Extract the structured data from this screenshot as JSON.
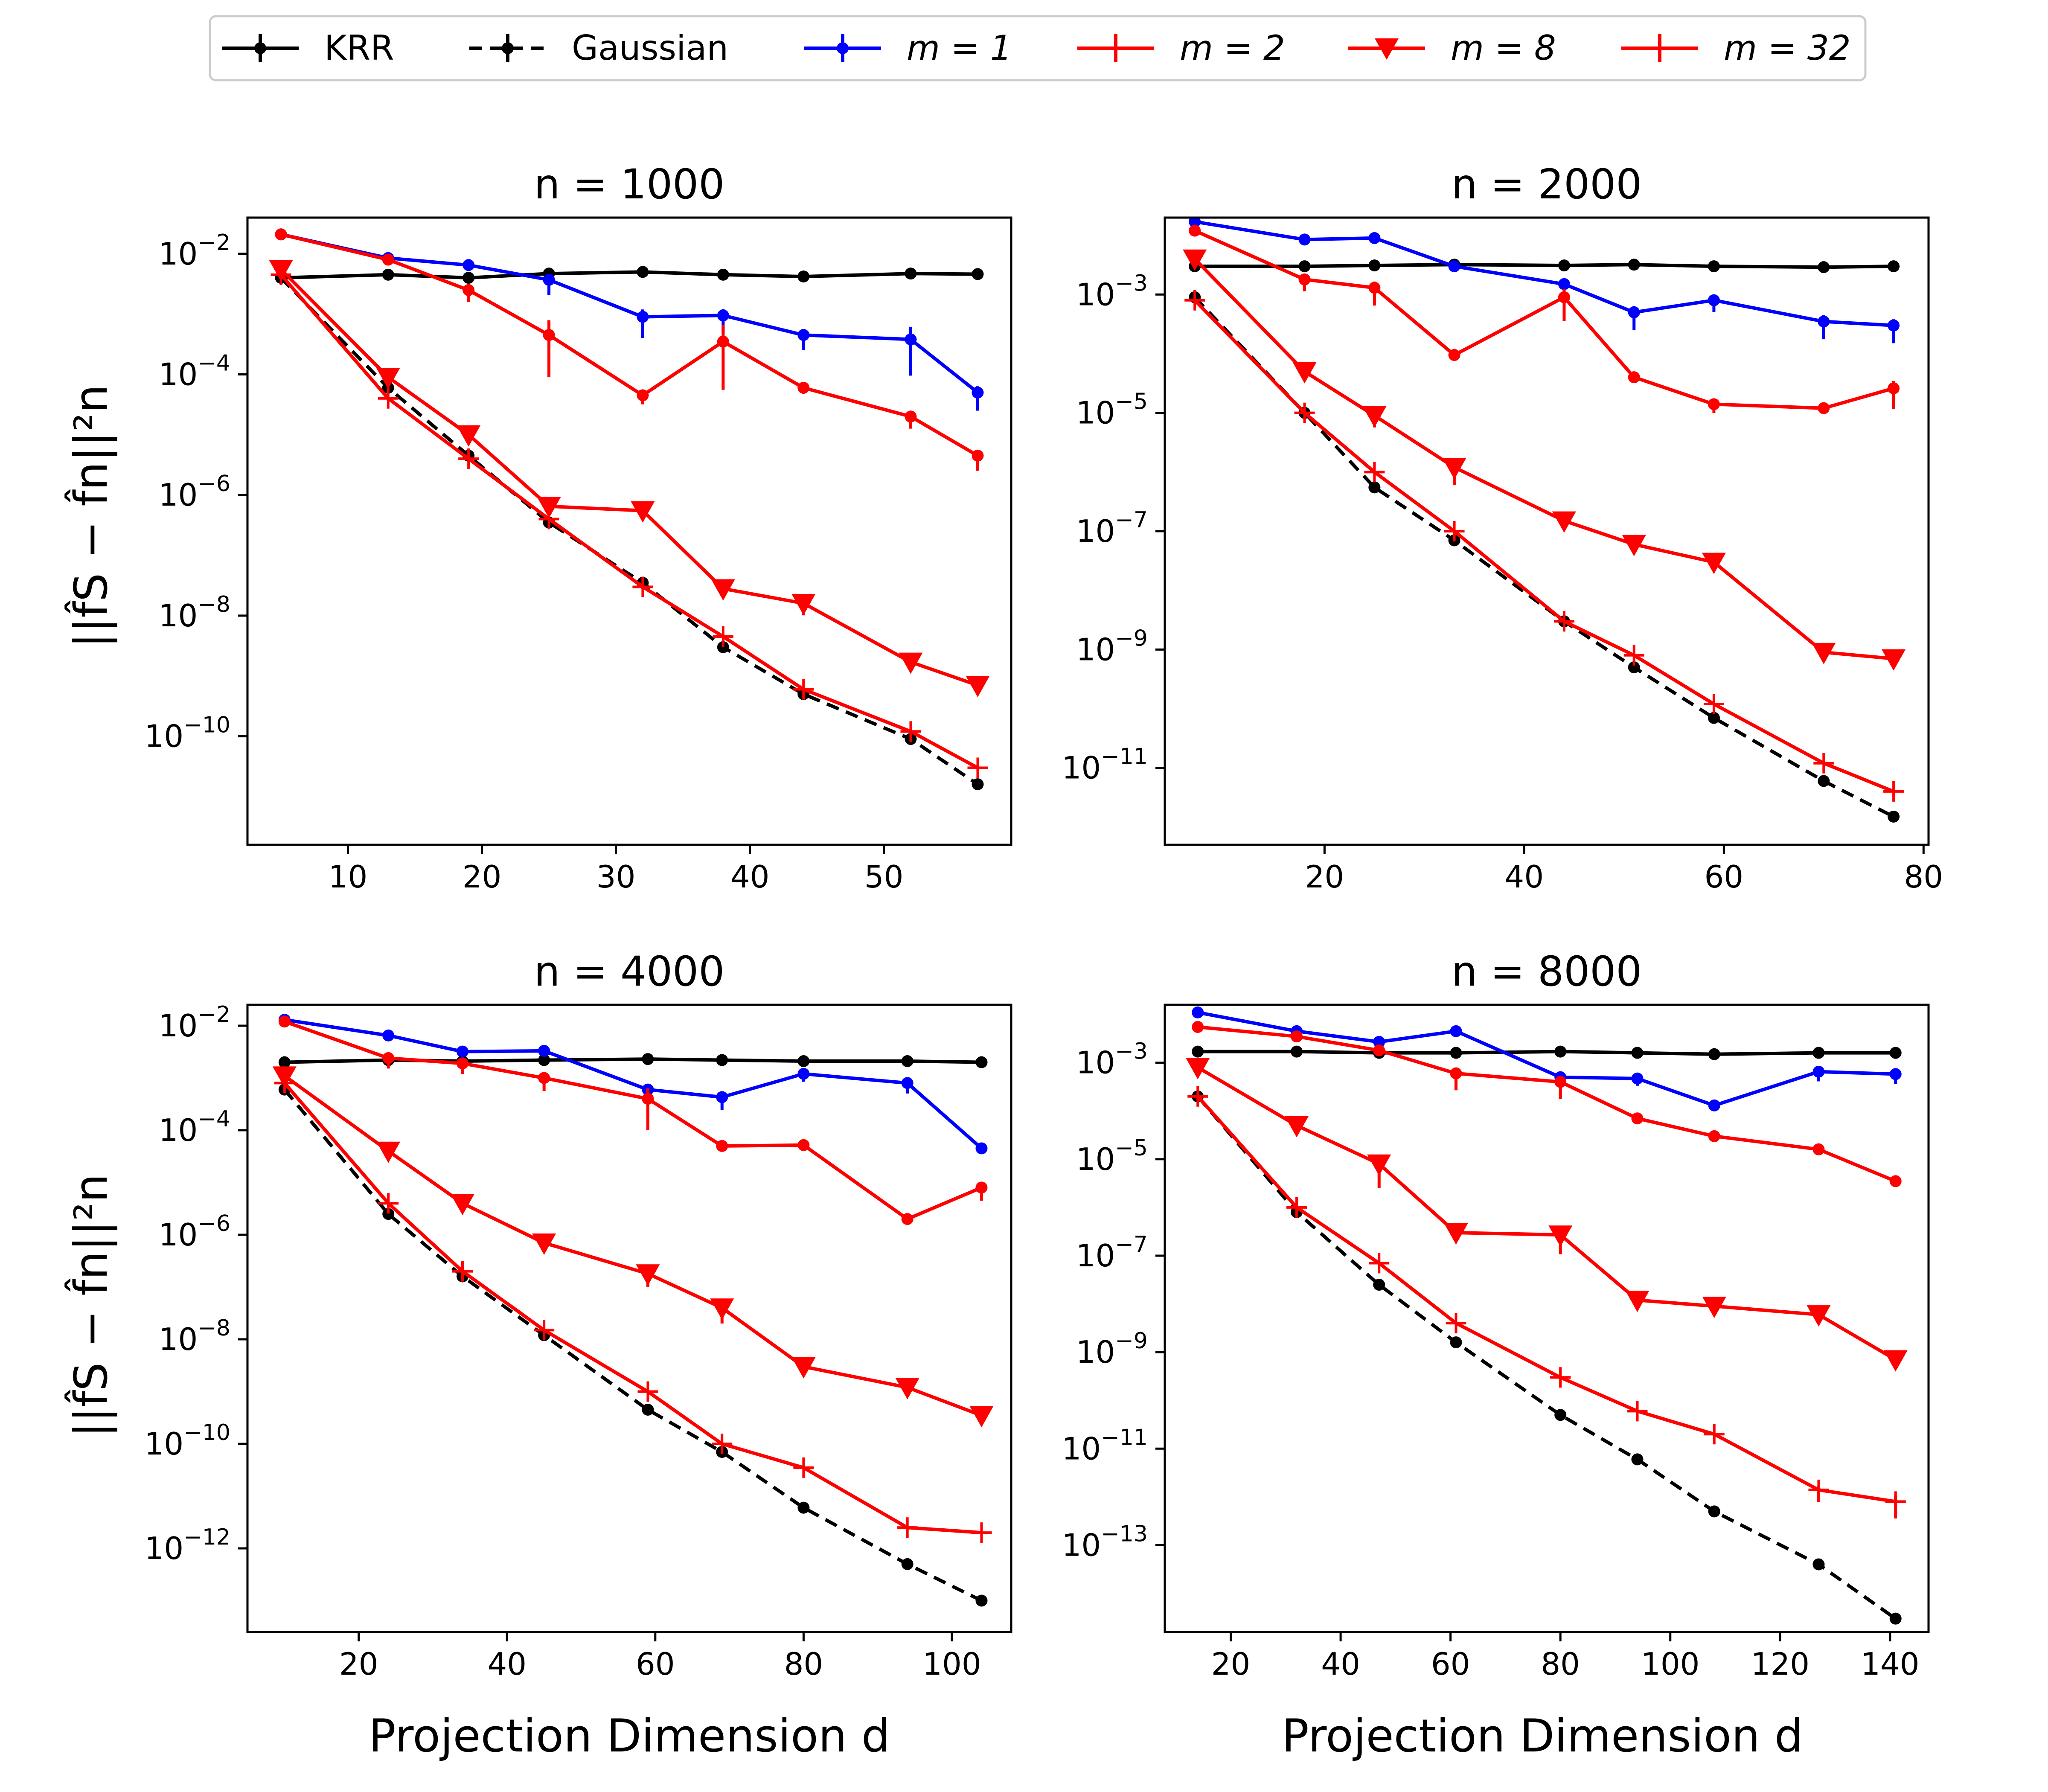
{
  "colors": {
    "krr": "#000000",
    "gaussian": "#000000",
    "m1": "#0000ff",
    "m2": "#ff0000",
    "m8": "#ff0000",
    "m32": "#ff0000"
  },
  "legend": {
    "krr": "KRR",
    "gaussian": "Gaussian",
    "m1": "m = 1",
    "m2": "m = 2",
    "m8": "m = 8",
    "m32": "m = 32"
  },
  "axes": {
    "xlabel": "Projection Dimension d",
    "ylabel": "||f̂S − f̂n||²n"
  },
  "chart_data": [
    {
      "type": "line",
      "title": "n = 1000",
      "xlabel": "Projection Dimension d",
      "ylabel": "||f̂S − f̂n||²n",
      "yscale": "log",
      "xlim": [
        2.5,
        59.5
      ],
      "ylim_exp": [
        -11.8,
        -1.4
      ],
      "xticks": [
        10,
        20,
        30,
        40,
        50
      ],
      "yticks": [
        -10,
        -8,
        -6,
        -4,
        -2
      ],
      "series": [
        {
          "key": "krr",
          "name": "KRR",
          "marker": "dot",
          "dash": false,
          "x": [
            5,
            13,
            19,
            25,
            32,
            38,
            44,
            52,
            57
          ],
          "y": [
            0.004,
            0.0045,
            0.004,
            0.0047,
            0.005,
            0.0045,
            0.0042,
            0.0047,
            0.0046
          ],
          "err": [
            0,
            0,
            0,
            0,
            0,
            0,
            0,
            0,
            0
          ]
        },
        {
          "key": "gaussian",
          "name": "Gaussian",
          "marker": "dot",
          "dash": true,
          "x": [
            5,
            13,
            19,
            25,
            32,
            38,
            44,
            52,
            57
          ],
          "y": [
            0.004,
            6e-05,
            4.5e-06,
            3.5e-07,
            3.5e-08,
            3e-09,
            5e-10,
            9e-11,
            1.6e-11
          ],
          "err": [
            0,
            0,
            0,
            0,
            0,
            0,
            0,
            0,
            0
          ]
        },
        {
          "key": "m1",
          "name": "m = 1",
          "marker": "dot",
          "dash": false,
          "x": [
            5,
            13,
            19,
            25,
            32,
            38,
            44,
            52,
            57
          ],
          "y": [
            0.021,
            0.0085,
            0.0065,
            0.0037,
            0.0009,
            0.00095,
            0.00045,
            0.00038,
            5e-05
          ],
          "err": [
            0,
            0,
            0,
            0.25,
            0.35,
            0.3,
            0.25,
            0.6,
            0.3
          ]
        },
        {
          "key": "m2",
          "name": "m = 2",
          "marker": "dot",
          "dash": false,
          "x": [
            5,
            13,
            19,
            25,
            32,
            38,
            44,
            52,
            57
          ],
          "y": [
            0.021,
            0.008,
            0.0025,
            0.00045,
            4.5e-05,
            0.00035,
            6e-05,
            2e-05,
            4.5e-06
          ],
          "err": [
            0,
            0,
            0.2,
            0.7,
            0.15,
            0.8,
            0.1,
            0.2,
            0.25
          ]
        },
        {
          "key": "m8",
          "name": "m = 8",
          "marker": "tri",
          "dash": false,
          "x": [
            5,
            13,
            19,
            25,
            32,
            38,
            44,
            52,
            57
          ],
          "y": [
            0.0055,
            9e-05,
            1e-05,
            6.5e-07,
            5.5e-07,
            2.8e-08,
            1.6e-08,
            1.7e-09,
            7e-10
          ],
          "err": [
            0,
            0,
            0,
            0,
            0,
            0,
            0.2,
            0,
            0.1
          ]
        },
        {
          "key": "m32",
          "name": "m = 32",
          "marker": "plus",
          "dash": false,
          "x": [
            5,
            13,
            19,
            25,
            32,
            38,
            44,
            52,
            57
          ],
          "y": [
            0.0045,
            4e-05,
            4e-06,
            4e-07,
            3e-08,
            4.5e-09,
            6e-10,
            1.2e-10,
            3e-11
          ],
          "err": [
            0,
            0,
            0,
            0,
            0,
            0,
            0,
            0,
            0
          ]
        }
      ]
    },
    {
      "type": "line",
      "title": "n = 2000",
      "xlabel": "Projection Dimension d",
      "ylabel": "||f̂S − f̂n||²n",
      "yscale": "log",
      "xlim": [
        4,
        80.5
      ],
      "ylim_exp": [
        -12.3,
        -1.7
      ],
      "xticks": [
        20,
        40,
        60,
        80
      ],
      "yticks": [
        -11,
        -9,
        -7,
        -5,
        -3
      ],
      "series": [
        {
          "key": "krr",
          "name": "KRR",
          "marker": "dot",
          "dash": false,
          "x": [
            7,
            18,
            25,
            33,
            44,
            51,
            59,
            70,
            77
          ],
          "y": [
            0.003,
            0.003,
            0.0031,
            0.0032,
            0.0031,
            0.0032,
            0.003,
            0.0029,
            0.003
          ],
          "err": [
            0,
            0,
            0,
            0,
            0,
            0,
            0,
            0,
            0
          ]
        },
        {
          "key": "gaussian",
          "name": "Gaussian",
          "marker": "dot",
          "dash": true,
          "x": [
            7,
            18,
            25,
            33,
            44,
            51,
            59,
            70,
            77
          ],
          "y": [
            0.0009,
            1e-05,
            5.5e-07,
            7e-08,
            3e-09,
            5e-10,
            7e-11,
            6e-12,
            1.5e-12
          ],
          "err": [
            0,
            0,
            0,
            0,
            0,
            0,
            0,
            0,
            0
          ]
        },
        {
          "key": "m1",
          "name": "m = 1",
          "marker": "dot",
          "dash": false,
          "x": [
            7,
            18,
            25,
            33,
            44,
            51,
            59,
            70,
            77
          ],
          "y": [
            0.017,
            0.0085,
            0.009,
            0.003,
            0.0015,
            0.0005,
            0.0008,
            0.00035,
            0.0003
          ],
          "err": [
            0,
            0,
            0,
            0.1,
            0.12,
            0.3,
            0.2,
            0.3,
            0.3
          ]
        },
        {
          "key": "m2",
          "name": "m = 2",
          "marker": "dot",
          "dash": false,
          "x": [
            7,
            18,
            25,
            33,
            44,
            51,
            59,
            70,
            77
          ],
          "y": [
            0.012,
            0.0018,
            0.0013,
            9.5e-05,
            0.0009,
            4e-05,
            1.4e-05,
            1.2e-05,
            2.6e-05
          ],
          "err": [
            0,
            0.2,
            0.3,
            0,
            0.4,
            0,
            0.15,
            0.1,
            0.35
          ]
        },
        {
          "key": "m8",
          "name": "m = 8",
          "marker": "tri",
          "dash": false,
          "x": [
            7,
            18,
            25,
            33,
            44,
            51,
            59,
            70,
            77
          ],
          "y": [
            0.004,
            5e-05,
            9e-06,
            1.2e-06,
            1.5e-07,
            6e-08,
            3e-08,
            9e-10,
            7e-10
          ],
          "err": [
            0,
            0,
            0.2,
            0.3,
            0,
            0,
            0.15,
            0,
            0.15
          ]
        },
        {
          "key": "m32",
          "name": "m = 32",
          "marker": "plus",
          "dash": false,
          "x": [
            7,
            18,
            25,
            33,
            44,
            51,
            59,
            70,
            77
          ],
          "y": [
            0.0008,
            1e-05,
            1e-06,
            1e-07,
            3e-09,
            8e-10,
            1.2e-10,
            1.2e-11,
            4e-12
          ],
          "err": [
            0,
            0,
            0,
            0,
            0,
            0,
            0,
            0,
            0
          ]
        }
      ]
    },
    {
      "type": "line",
      "title": "n = 4000",
      "xlabel": "Projection Dimension d",
      "ylabel": "||f̂S − f̂n||²n",
      "yscale": "log",
      "xlim": [
        5,
        108
      ],
      "ylim_exp": [
        -13.6,
        -1.6
      ],
      "xticks": [
        20,
        40,
        60,
        80,
        100
      ],
      "yticks": [
        -12,
        -10,
        -8,
        -6,
        -4,
        -2
      ],
      "series": [
        {
          "key": "krr",
          "name": "KRR",
          "marker": "dot",
          "dash": false,
          "x": [
            10,
            24,
            34,
            45,
            59,
            69,
            80,
            94,
            104
          ],
          "y": [
            0.002,
            0.0022,
            0.0021,
            0.0022,
            0.0023,
            0.0022,
            0.0021,
            0.0021,
            0.002
          ],
          "err": [
            0,
            0,
            0,
            0,
            0,
            0,
            0,
            0,
            0
          ]
        },
        {
          "key": "gaussian",
          "name": "Gaussian",
          "marker": "dot",
          "dash": true,
          "x": [
            10,
            24,
            34,
            45,
            59,
            69,
            80,
            94,
            104
          ],
          "y": [
            0.0006,
            2.5e-06,
            1.6e-07,
            1.2e-08,
            4.5e-10,
            7e-11,
            6e-12,
            5e-13,
            1e-13
          ],
          "err": [
            0,
            0,
            0,
            0,
            0,
            0,
            0,
            0,
            0
          ]
        },
        {
          "key": "m1",
          "name": "m = 1",
          "marker": "dot",
          "dash": false,
          "x": [
            10,
            24,
            34,
            45,
            59,
            69,
            80,
            94,
            104
          ],
          "y": [
            0.013,
            0.0065,
            0.0032,
            0.0033,
            0.0006,
            0.00043,
            0.0012,
            0.0008,
            4.5e-05
          ],
          "err": [
            0,
            0,
            0,
            0,
            0.15,
            0.25,
            0.15,
            0.2,
            0
          ]
        },
        {
          "key": "m2",
          "name": "m = 2",
          "marker": "dot",
          "dash": false,
          "x": [
            10,
            24,
            34,
            45,
            59,
            69,
            80,
            94,
            104
          ],
          "y": [
            0.012,
            0.0024,
            0.0019,
            0.001,
            0.0004,
            5e-05,
            5.2e-05,
            2e-06,
            8e-06
          ],
          "err": [
            0,
            0.2,
            0.2,
            0.25,
            0.6,
            0,
            0,
            0,
            0.25
          ]
        },
        {
          "key": "m8",
          "name": "m = 8",
          "marker": "tri",
          "dash": false,
          "x": [
            10,
            24,
            34,
            45,
            59,
            69,
            80,
            94,
            104
          ],
          "y": [
            0.0011,
            4e-05,
            4e-06,
            7e-07,
            1.8e-07,
            4e-08,
            3e-09,
            1.2e-09,
            3.5e-10
          ],
          "err": [
            0,
            0,
            0,
            0.15,
            0.25,
            0.3,
            0,
            0,
            0
          ]
        },
        {
          "key": "m32",
          "name": "m = 32",
          "marker": "plus",
          "dash": false,
          "x": [
            10,
            24,
            34,
            45,
            59,
            69,
            80,
            94,
            104
          ],
          "y": [
            0.0008,
            4e-06,
            2e-07,
            1.5e-08,
            1e-09,
            1e-10,
            3.5e-11,
            2.5e-12,
            2e-12
          ],
          "err": [
            0,
            0,
            0,
            0,
            0,
            0,
            0,
            0,
            0
          ]
        }
      ]
    },
    {
      "type": "line",
      "title": "n = 8000",
      "xlabel": "Projection Dimension d",
      "ylabel": "||f̂S − f̂n||²n",
      "yscale": "log",
      "xlim": [
        8,
        147
      ],
      "ylim_exp": [
        -14.8,
        -1.8
      ],
      "xticks": [
        20,
        40,
        60,
        80,
        100,
        120,
        140
      ],
      "yticks": [
        -13,
        -11,
        -9,
        -7,
        -5,
        -3
      ],
      "series": [
        {
          "key": "krr",
          "name": "KRR",
          "marker": "dot",
          "dash": false,
          "x": [
            14,
            32,
            47,
            61,
            80,
            94,
            108,
            127,
            141
          ],
          "y": [
            0.0017,
            0.0017,
            0.0016,
            0.0016,
            0.0017,
            0.0016,
            0.0015,
            0.0016,
            0.0016
          ],
          "err": [
            0,
            0,
            0,
            0,
            0,
            0,
            0,
            0,
            0
          ]
        },
        {
          "key": "gaussian",
          "name": "Gaussian",
          "marker": "dot",
          "dash": true,
          "x": [
            14,
            32,
            47,
            61,
            80,
            94,
            108,
            127,
            141
          ],
          "y": [
            0.0002,
            8e-07,
            2.5e-08,
            1.6e-09,
            5e-11,
            6e-12,
            5e-13,
            4e-14,
            3e-15
          ],
          "err": [
            0,
            0,
            0,
            0,
            0,
            0,
            0,
            0,
            0
          ]
        },
        {
          "key": "m1",
          "name": "m = 1",
          "marker": "dot",
          "dash": false,
          "x": [
            14,
            32,
            47,
            61,
            80,
            94,
            108,
            127,
            141
          ],
          "y": [
            0.011,
            0.0045,
            0.0027,
            0.0045,
            0.0005,
            0.00047,
            0.00013,
            0.00065,
            0.00058
          ],
          "err": [
            0,
            0,
            0,
            0,
            0.15,
            0.15,
            0,
            0.2,
            0.2
          ]
        },
        {
          "key": "m2",
          "name": "m = 2",
          "marker": "dot",
          "dash": false,
          "x": [
            14,
            32,
            47,
            61,
            80,
            94,
            108,
            127,
            141
          ],
          "y": [
            0.0055,
            0.0035,
            0.0018,
            0.0006,
            0.0004,
            7e-05,
            3e-05,
            1.6e-05,
            3.5e-06
          ],
          "err": [
            0,
            0,
            0,
            0.35,
            0.35,
            0,
            0,
            0,
            0
          ]
        },
        {
          "key": "m8",
          "name": "m = 8",
          "marker": "tri",
          "dash": false,
          "x": [
            14,
            32,
            47,
            61,
            80,
            94,
            108,
            127,
            141
          ],
          "y": [
            0.0008,
            5e-05,
            8e-06,
            3e-07,
            2.7e-07,
            1.2e-08,
            9e-09,
            6e-09,
            7e-10
          ],
          "err": [
            0,
            0,
            0.5,
            0,
            0.4,
            0,
            0,
            0,
            0
          ]
        },
        {
          "key": "m32",
          "name": "m = 32",
          "marker": "plus",
          "dash": false,
          "x": [
            14,
            32,
            47,
            61,
            80,
            94,
            108,
            127,
            141
          ],
          "y": [
            0.0002,
            1e-06,
            7e-08,
            4e-09,
            3e-10,
            6e-11,
            2e-11,
            1.4e-12,
            8e-13
          ],
          "err": [
            0,
            0,
            0,
            0,
            0,
            0,
            0,
            0.25,
            0.35
          ]
        }
      ]
    }
  ]
}
